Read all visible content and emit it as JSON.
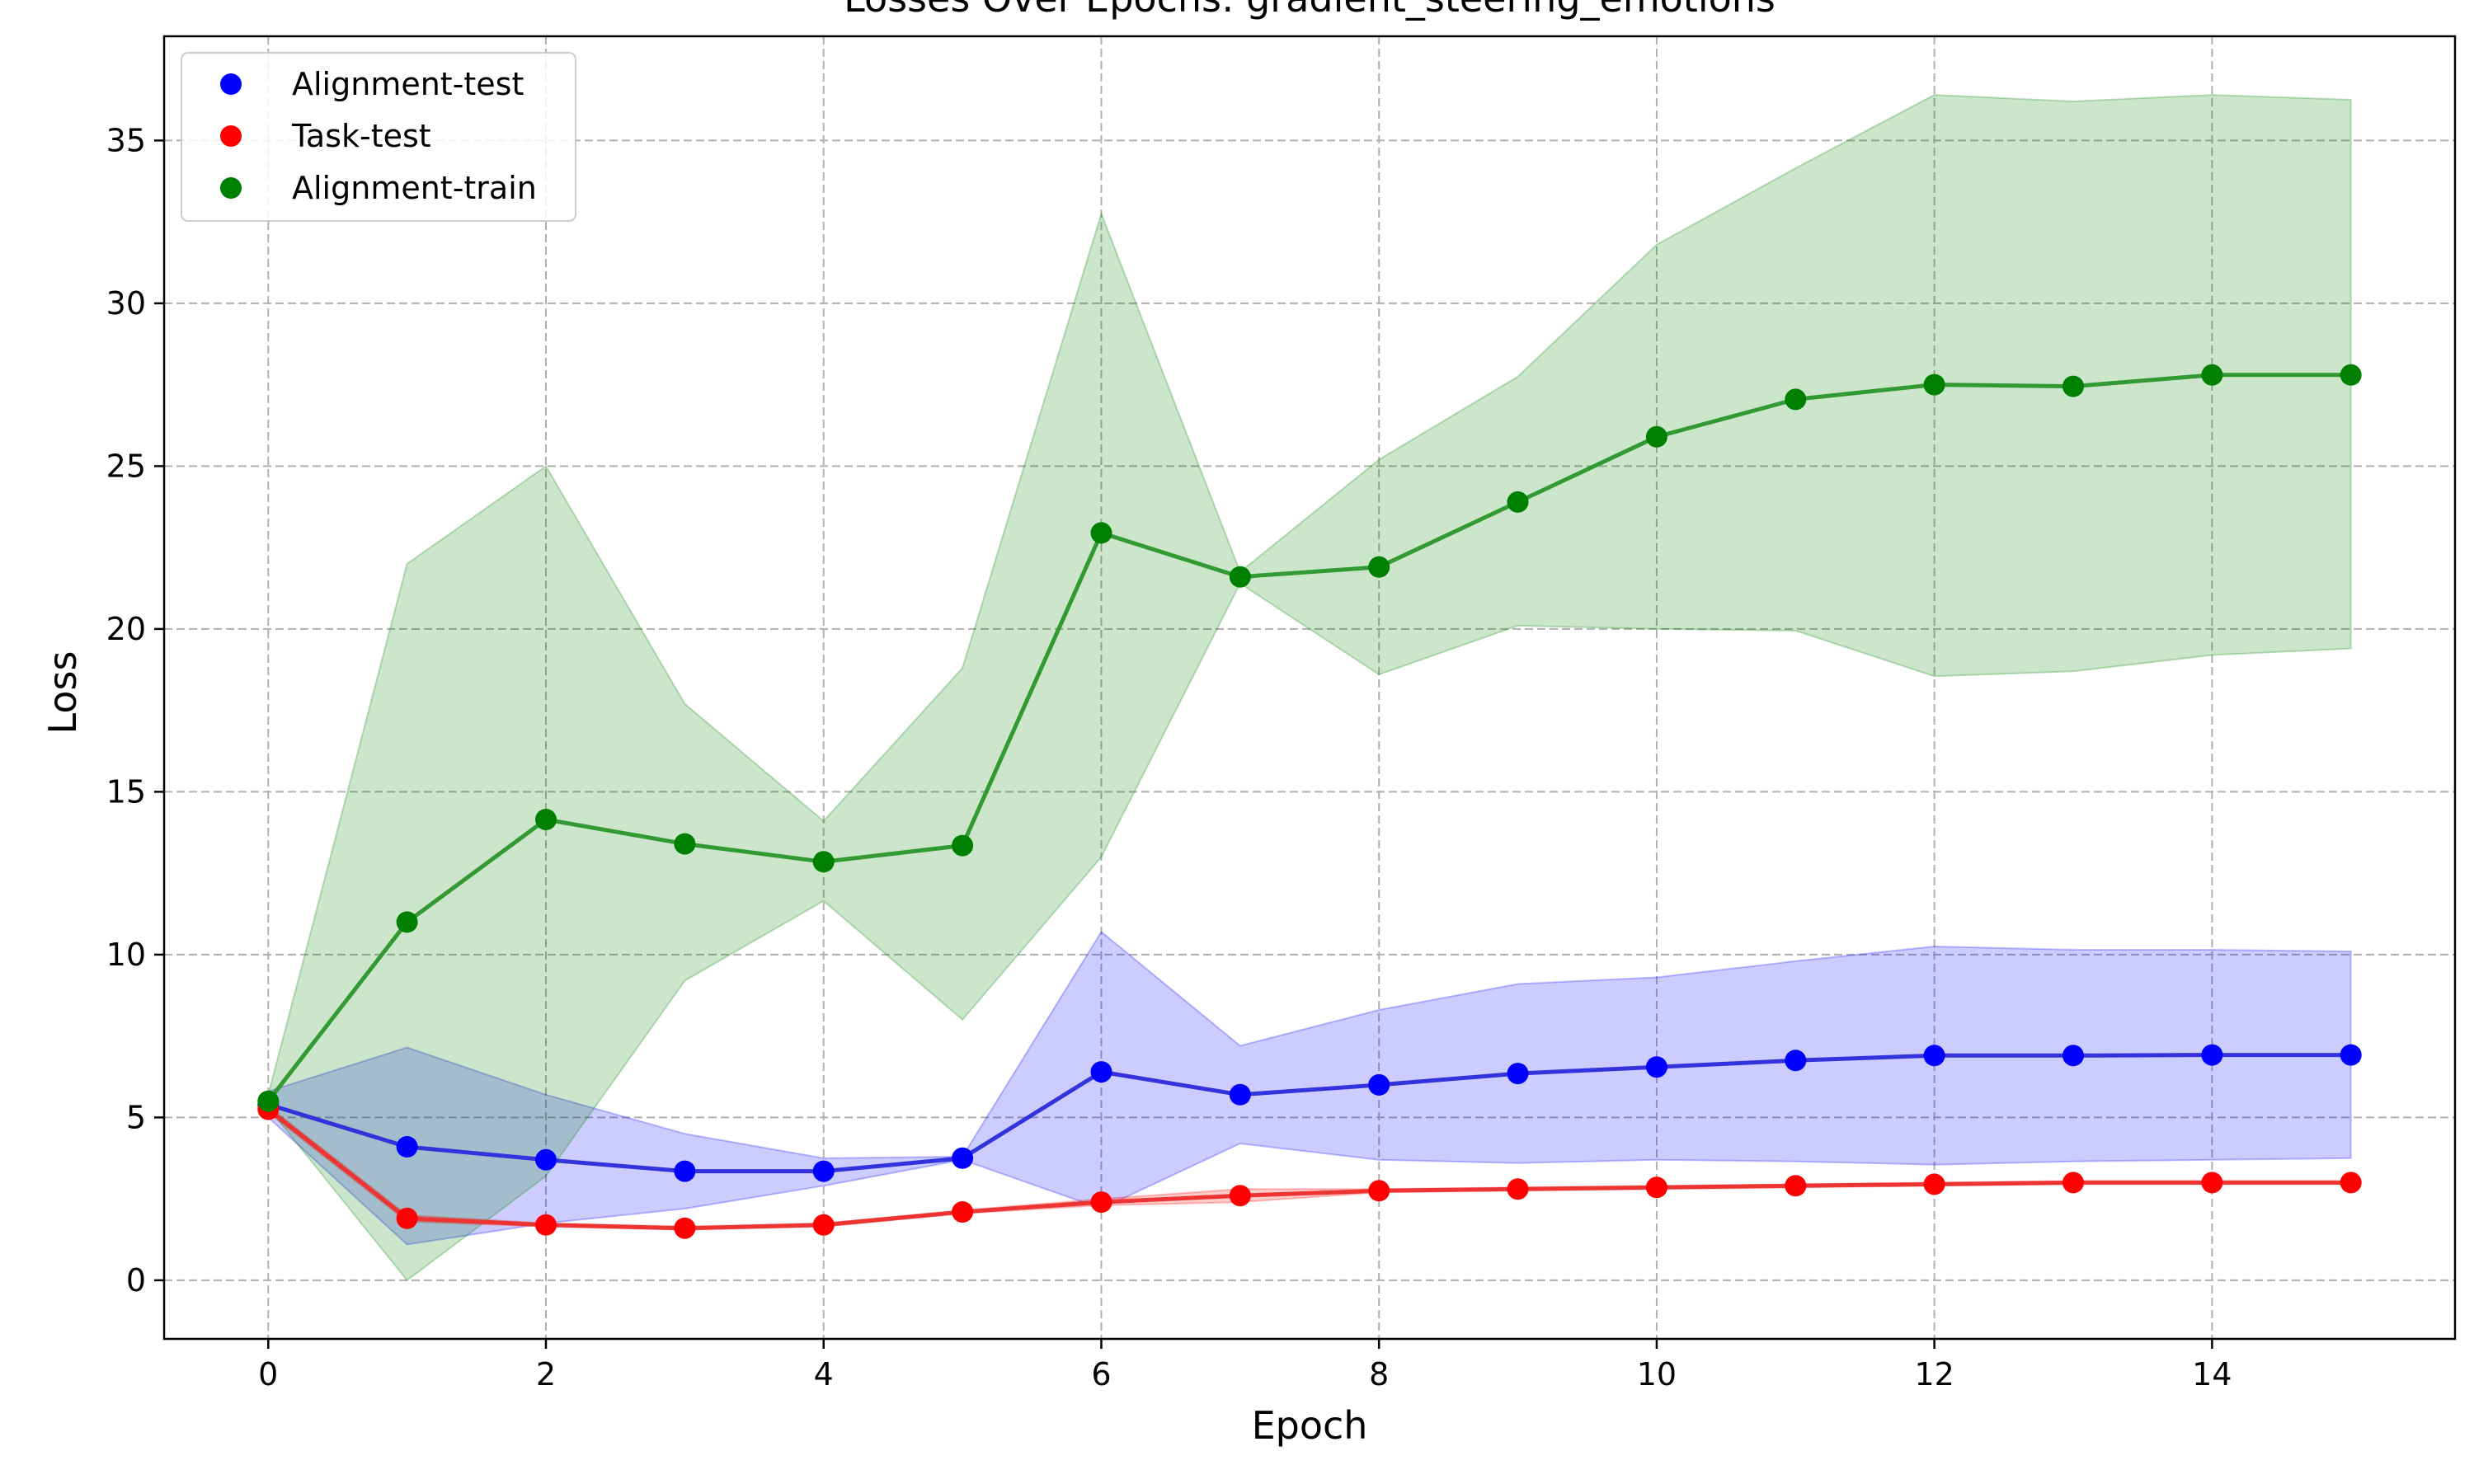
{
  "chart_data": {
    "type": "line",
    "title": "Losses Over Epochs: gradient_steering_emotions",
    "xlabel": "Epoch",
    "ylabel": "Loss",
    "xlim": [
      -0.75,
      15.75
    ],
    "ylim": [
      -1.8,
      38.2
    ],
    "xticks": [
      0,
      2,
      4,
      6,
      8,
      10,
      12,
      14
    ],
    "yticks": [
      0,
      5,
      10,
      15,
      20,
      25,
      30,
      35
    ],
    "grid": true,
    "legend_position": "top-left",
    "x": [
      0,
      1,
      2,
      3,
      4,
      5,
      6,
      7,
      8,
      9,
      10,
      11,
      12,
      13,
      14,
      15
    ],
    "series": [
      {
        "name": "Alignment-test",
        "color": "#0000ff",
        "line_color": "#3333dd",
        "band_color": "#0000ff",
        "values": [
          5.4,
          4.1,
          3.7,
          3.35,
          3.35,
          3.75,
          6.4,
          5.7,
          6.0,
          6.35,
          6.55,
          6.75,
          6.9,
          6.9,
          6.92,
          6.92
        ],
        "lower": [
          5.0,
          1.1,
          1.75,
          2.2,
          2.9,
          3.7,
          2.2,
          4.2,
          3.7,
          3.6,
          3.7,
          3.65,
          3.55,
          3.65,
          3.7,
          3.75
        ],
        "upper": [
          5.8,
          7.15,
          5.7,
          4.5,
          3.75,
          3.8,
          10.7,
          7.2,
          8.3,
          9.1,
          9.3,
          9.8,
          10.25,
          10.15,
          10.15,
          10.1
        ]
      },
      {
        "name": "Task-test",
        "color": "#ff0000",
        "line_color": "#ee3333",
        "band_color": "#ff0000",
        "values": [
          5.25,
          1.9,
          1.7,
          1.6,
          1.7,
          2.1,
          2.4,
          2.6,
          2.75,
          2.8,
          2.85,
          2.9,
          2.95,
          3.0,
          3.0,
          3.0
        ],
        "lower": [
          5.15,
          1.8,
          1.65,
          1.55,
          1.65,
          2.05,
          2.3,
          2.4,
          2.7,
          2.75,
          2.8,
          2.85,
          2.9,
          2.95,
          2.95,
          2.95
        ],
        "upper": [
          5.35,
          2.0,
          1.75,
          1.65,
          1.75,
          2.15,
          2.5,
          2.8,
          2.8,
          2.85,
          2.9,
          2.95,
          3.0,
          3.05,
          3.05,
          3.05
        ]
      },
      {
        "name": "Alignment-train",
        "color": "#008000",
        "line_color": "#339933",
        "band_color": "#008000",
        "values": [
          5.5,
          11.0,
          14.15,
          13.4,
          12.85,
          13.35,
          22.95,
          21.6,
          21.9,
          23.9,
          25.9,
          27.05,
          27.5,
          27.45,
          27.8,
          27.8
        ],
        "lower": [
          5.3,
          0.0,
          3.2,
          9.2,
          11.65,
          8.0,
          13.0,
          21.4,
          18.6,
          20.1,
          20.0,
          19.95,
          18.55,
          18.7,
          19.2,
          19.4
        ],
        "upper": [
          5.7,
          22.0,
          25.0,
          17.7,
          14.1,
          18.8,
          32.75,
          21.75,
          25.2,
          27.75,
          31.8,
          34.15,
          36.4,
          36.2,
          36.4,
          36.25
        ]
      }
    ]
  }
}
